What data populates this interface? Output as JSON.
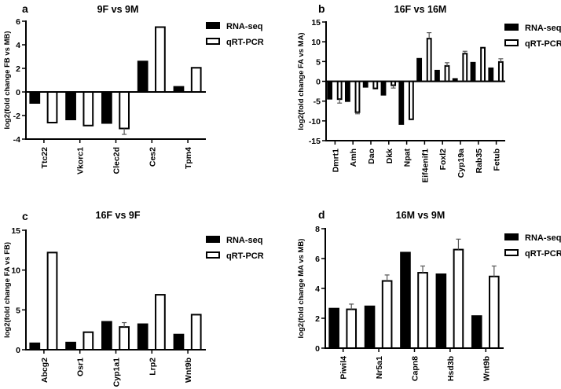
{
  "chart_data": [
    {
      "panel": "a",
      "type": "bar",
      "title": "9F  vs  9M",
      "ylabel": "log2(fold change FB vs MB)",
      "xlabel": "",
      "ylim": [
        -4,
        6
      ],
      "yticks": [
        -4,
        -2,
        0,
        2,
        4,
        6
      ],
      "categories": [
        "Ttc22",
        "Vkorc1",
        "Clec2d",
        "Ces2",
        "Tpm4"
      ],
      "series": [
        {
          "name": "RNA-seq",
          "values": [
            -1.0,
            -2.4,
            -2.7,
            2.65,
            0.5
          ]
        },
        {
          "name": "qRT-PCR",
          "values": [
            -2.6,
            -2.85,
            -3.1,
            5.5,
            2.05
          ],
          "error_upper": [
            null,
            null,
            null,
            null,
            null
          ],
          "error_lower": [
            -2.6,
            -2.85,
            -3.6,
            5.55,
            2.1
          ]
        }
      ],
      "legend": "top-right"
    },
    {
      "panel": "b",
      "type": "bar",
      "title": "16F vs 16M",
      "ylabel": "log2(fold change FA vs MA)",
      "xlabel": "",
      "ylim": [
        -15,
        15
      ],
      "yticks": [
        -15,
        -10,
        -5,
        0,
        5,
        10,
        15
      ],
      "categories": [
        "Dmrt1",
        "Amh",
        "Dao",
        "Dkk",
        "Npat",
        "Eif4enif1",
        "Foxl2",
        "Cyp19a",
        "Rab35",
        "Fetub"
      ],
      "series": [
        {
          "name": "RNA-seq",
          "values": [
            -4.6,
            -5.2,
            -1.6,
            -3.6,
            -11.0,
            5.9,
            2.9,
            0.8,
            4.9,
            3.5
          ]
        },
        {
          "name": "qRT-PCR",
          "values": [
            -4.5,
            -7.8,
            -1.8,
            -1.0,
            -9.6,
            10.8,
            3.9,
            7.0,
            8.5,
            4.9
          ],
          "error_end": [
            -5.5,
            -8.2,
            -1.8,
            -1.7,
            -9.6,
            12.3,
            4.7,
            7.6,
            8.6,
            5.7
          ]
        }
      ],
      "legend": "top-right"
    },
    {
      "panel": "c",
      "type": "bar",
      "title": "16F vs  9F",
      "ylabel": "log2(fold change FA vs FB)",
      "xlabel": "",
      "ylim": [
        0,
        15
      ],
      "yticks": [
        0,
        5,
        10,
        15
      ],
      "categories": [
        "Abcg2",
        "Osr1",
        "Cyp1a1",
        "Lrp2",
        "Wnt9b"
      ],
      "series": [
        {
          "name": "RNA-seq",
          "values": [
            0.9,
            1.0,
            3.6,
            3.3,
            2.0
          ]
        },
        {
          "name": "qRT-PCR",
          "values": [
            12.2,
            2.2,
            2.85,
            6.9,
            4.4
          ],
          "error_end": [
            12.25,
            2.25,
            3.4,
            6.95,
            4.45
          ]
        }
      ],
      "legend": "top-right"
    },
    {
      "panel": "d",
      "type": "bar",
      "title": "16M vs 9M",
      "ylabel": "log2(fold change MA vs MB)",
      "xlabel": "",
      "ylim": [
        0,
        8
      ],
      "yticks": [
        0,
        2,
        4,
        6,
        8
      ],
      "categories": [
        "Piwil4",
        "Nr5a1",
        "Capn8",
        "Hsd3b",
        "Wnt9b"
      ],
      "series": [
        {
          "name": "RNA-seq",
          "values": [
            2.7,
            2.85,
            6.45,
            5.0,
            2.2
          ]
        },
        {
          "name": "qRT-PCR",
          "values": [
            2.6,
            4.5,
            5.05,
            6.6,
            4.8
          ],
          "error_end": [
            2.95,
            4.9,
            5.5,
            7.3,
            5.5
          ]
        }
      ],
      "legend": "top-right"
    }
  ],
  "legend_labels": {
    "rna": "RNA-seq",
    "qrt": "qRT-PCR"
  }
}
